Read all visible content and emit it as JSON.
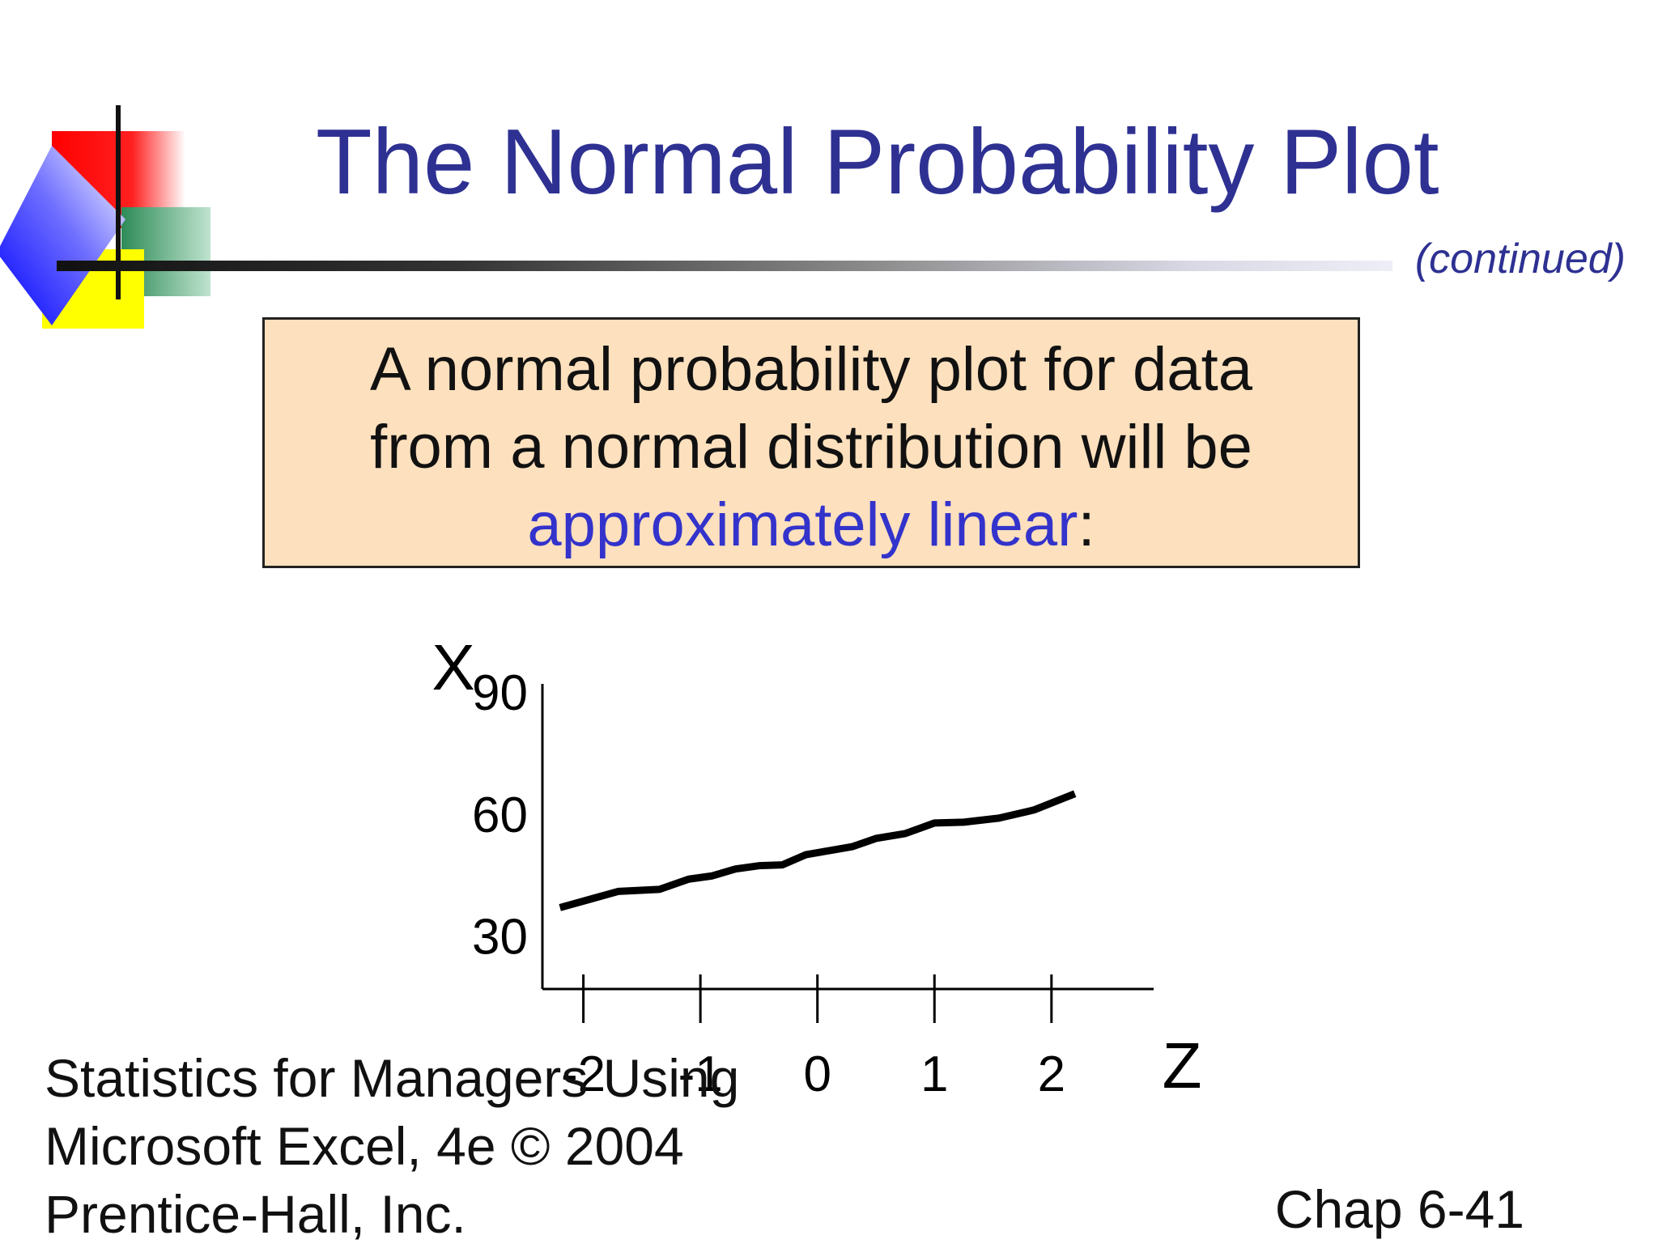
{
  "slide": {
    "title": "The Normal Probability Plot",
    "continued": "(continued)",
    "callout": {
      "line1": "A normal probability plot for data",
      "line2": "from a normal distribution will be",
      "accent": "approximately linear",
      "tail": ":"
    },
    "footer": {
      "line1": "Statistics for Managers Using",
      "line2": "Microsoft Excel, 4e © 2004",
      "line3": "Prentice-Hall, Inc.",
      "page": "Chap 6-41"
    }
  },
  "colors": {
    "title": "#2e3192",
    "accent": "#3333cc",
    "callout_bg": "#fde0bd",
    "line": "#000000"
  },
  "chart_data": {
    "type": "line",
    "ylabel": "X",
    "xlabel": "Z",
    "x_ticks": [
      -2,
      -1,
      0,
      1,
      2
    ],
    "y_ticks": [
      30,
      60,
      90
    ],
    "xlim": [
      -2.35,
      2.7
    ],
    "ylim": [
      17,
      90
    ],
    "grid": false,
    "series": [
      {
        "x": [
          -2.2,
          -1.95,
          -1.7,
          -1.35,
          -1.1,
          -0.9,
          -0.7,
          -0.5,
          -0.3,
          -0.1,
          0.1,
          0.3,
          0.5,
          0.75,
          1.0,
          1.25,
          1.55,
          1.85,
          2.2
        ],
        "y": [
          37,
          39,
          41,
          41.5,
          44,
          44.8,
          46.5,
          47.3,
          47.5,
          50,
          51,
          52,
          54,
          55.2,
          57.8,
          58,
          59,
          61,
          65
        ]
      }
    ]
  }
}
